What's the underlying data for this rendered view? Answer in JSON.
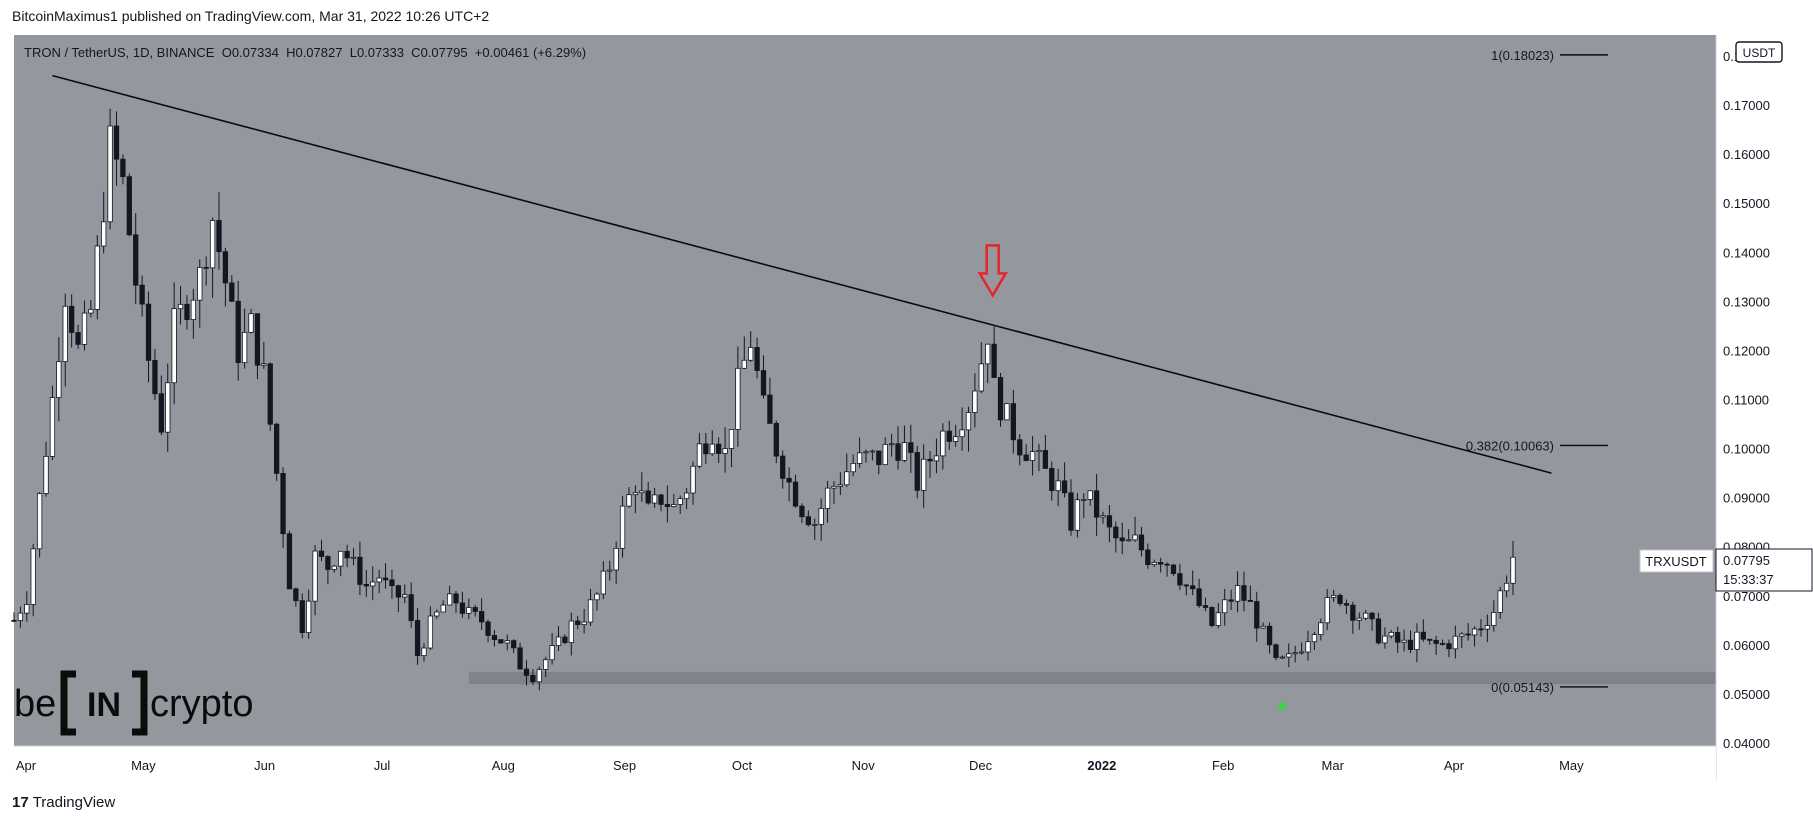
{
  "header": {
    "published_line": "BitcoinMaximus1 published on TradingView.com, Mar 31, 2022 10:26 UTC+2"
  },
  "ticker": {
    "symbol": "TRON / TetherUS, 1D, BINANCE",
    "o_label": "O",
    "o_value": "0.07334",
    "h_label": "H",
    "h_value": "0.07827",
    "l_label": "L",
    "l_value": "0.07333",
    "c_label": "C",
    "c_value": "0.07795",
    "change": "+0.00461 (+6.29%)"
  },
  "currency_label": "USDT",
  "price_tag": {
    "symbol": "TRXUSDT",
    "price": "0.07795",
    "countdown": "15:33:37"
  },
  "logo_text": {
    "left": "be",
    "middle": "IN",
    "right": "crypto"
  },
  "footer": {
    "brand": "TradingView",
    "logo_glyph": "17"
  },
  "chart_data": {
    "type": "candlestick",
    "x_labels": [
      "Apr",
      "May",
      "Jun",
      "Jul",
      "Aug",
      "Sep",
      "Oct",
      "Nov",
      "Dec",
      "2022",
      "Feb",
      "Mar",
      "Apr",
      "May"
    ],
    "y_ticks": [
      "0.18000",
      "0.17000",
      "0.16000",
      "0.15000",
      "0.14000",
      "0.13000",
      "0.12000",
      "0.11000",
      "0.10000",
      "0.09000",
      "0.08000",
      "0.07000",
      "0.06000",
      "0.05000",
      "0.04000"
    ],
    "ylim": [
      0.04,
      0.18
    ],
    "close_path": [
      [
        0,
        0.065
      ],
      [
        2,
        0.07
      ],
      [
        4,
        0.09
      ],
      [
        6,
        0.11
      ],
      [
        8,
        0.132
      ],
      [
        10,
        0.12
      ],
      [
        12,
        0.128
      ],
      [
        14,
        0.15
      ],
      [
        15,
        0.162
      ],
      [
        17,
        0.154
      ],
      [
        19,
        0.134
      ],
      [
        21,
        0.118
      ],
      [
        23,
        0.105
      ],
      [
        25,
        0.125
      ],
      [
        27,
        0.13
      ],
      [
        29,
        0.135
      ],
      [
        31,
        0.147
      ],
      [
        33,
        0.134
      ],
      [
        35,
        0.12
      ],
      [
        37,
        0.125
      ],
      [
        39,
        0.115
      ],
      [
        41,
        0.095
      ],
      [
        43,
        0.073
      ],
      [
        45,
        0.064
      ],
      [
        47,
        0.078
      ],
      [
        49,
        0.076
      ],
      [
        51,
        0.08
      ],
      [
        53,
        0.076
      ],
      [
        55,
        0.072
      ],
      [
        57,
        0.074
      ],
      [
        59,
        0.07
      ],
      [
        61,
        0.07
      ],
      [
        63,
        0.058
      ],
      [
        65,
        0.064
      ],
      [
        67,
        0.068
      ],
      [
        69,
        0.069
      ],
      [
        71,
        0.066
      ],
      [
        73,
        0.065
      ],
      [
        75,
        0.062
      ],
      [
        77,
        0.06
      ],
      [
        79,
        0.056
      ],
      [
        81,
        0.054
      ],
      [
        83,
        0.057
      ],
      [
        85,
        0.06
      ],
      [
        87,
        0.064
      ],
      [
        89,
        0.066
      ],
      [
        91,
        0.07
      ],
      [
        93,
        0.076
      ],
      [
        95,
        0.087
      ],
      [
        97,
        0.093
      ],
      [
        99,
        0.087
      ],
      [
        101,
        0.09
      ],
      [
        103,
        0.088
      ],
      [
        105,
        0.092
      ],
      [
        107,
        0.1
      ],
      [
        109,
        0.104
      ],
      [
        111,
        0.099
      ],
      [
        113,
        0.113
      ],
      [
        115,
        0.122
      ],
      [
        117,
        0.108
      ],
      [
        119,
        0.1
      ],
      [
        121,
        0.093
      ],
      [
        123,
        0.088
      ],
      [
        125,
        0.085
      ],
      [
        127,
        0.091
      ],
      [
        129,
        0.094
      ],
      [
        131,
        0.097
      ],
      [
        133,
        0.098
      ],
      [
        135,
        0.098
      ],
      [
        137,
        0.101
      ],
      [
        139,
        0.1
      ],
      [
        141,
        0.093
      ],
      [
        143,
        0.098
      ],
      [
        145,
        0.103
      ],
      [
        147,
        0.105
      ],
      [
        149,
        0.109
      ],
      [
        151,
        0.118
      ],
      [
        152,
        0.124
      ],
      [
        153,
        0.112
      ],
      [
        155,
        0.106
      ],
      [
        157,
        0.101
      ],
      [
        159,
        0.099
      ],
      [
        161,
        0.095
      ],
      [
        163,
        0.092
      ],
      [
        165,
        0.085
      ],
      [
        167,
        0.091
      ],
      [
        169,
        0.087
      ],
      [
        171,
        0.083
      ],
      [
        173,
        0.08
      ],
      [
        175,
        0.081
      ],
      [
        177,
        0.078
      ],
      [
        179,
        0.078
      ],
      [
        181,
        0.076
      ],
      [
        183,
        0.072
      ],
      [
        185,
        0.068
      ],
      [
        187,
        0.064
      ],
      [
        189,
        0.068
      ],
      [
        191,
        0.071
      ],
      [
        193,
        0.068
      ],
      [
        195,
        0.062
      ],
      [
        197,
        0.056
      ],
      [
        199,
        0.057
      ],
      [
        201,
        0.06
      ],
      [
        203,
        0.064
      ],
      [
        205,
        0.068
      ],
      [
        207,
        0.07
      ],
      [
        209,
        0.067
      ],
      [
        211,
        0.065
      ],
      [
        213,
        0.062
      ],
      [
        215,
        0.061
      ],
      [
        217,
        0.06
      ],
      [
        219,
        0.061
      ],
      [
        221,
        0.06
      ],
      [
        223,
        0.06
      ],
      [
        225,
        0.061
      ],
      [
        227,
        0.062
      ],
      [
        229,
        0.064
      ],
      [
        231,
        0.067
      ],
      [
        233,
        0.074
      ],
      [
        234,
        0.078
      ]
    ],
    "candle_count": 235,
    "month_start_index": [
      0,
      30,
      61,
      91,
      122,
      153,
      183,
      214,
      244,
      275,
      306,
      334,
      365,
      395
    ],
    "trendline": {
      "from": [
        6,
        0.176
      ],
      "to": [
        240,
        0.095
      ]
    },
    "support_zone": [
      0.052,
      0.0545
    ],
    "fib_levels": [
      {
        "label": "1(0.18023)",
        "value": 0.18023
      },
      {
        "label": "0.382(0.10063)",
        "value": 0.10063
      },
      {
        "label": "0(0.05143)",
        "value": 0.05143
      }
    ],
    "red_arrow_at": [
      152,
      0.13
    ],
    "green_marker_at": [
      198,
      0.051
    ]
  }
}
